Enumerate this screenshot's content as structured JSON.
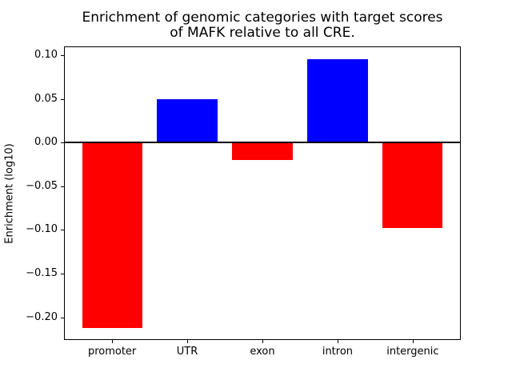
{
  "figure": {
    "background": "#ffffff",
    "title_line1": "Enrichment of genomic categories with target scores",
    "title_line2": "of MAFK relative to all CRE."
  },
  "chart_data": {
    "type": "bar",
    "title": "Enrichment of genomic categories with target scores\nof MAFK relative to all CRE.",
    "xlabel": "",
    "ylabel": "Enrichment (log10)",
    "categories": [
      "promoter",
      "UTR",
      "exon",
      "intron",
      "intergenic"
    ],
    "values": [
      -0.212,
      0.05,
      -0.02,
      0.095,
      -0.098
    ],
    "bar_colors": [
      "#ff0000",
      "#0000ff",
      "#ff0000",
      "#0000ff",
      "#ff0000"
    ],
    "positive_color": "#0000ff",
    "negative_color": "#ff0000",
    "ylim": [
      -0.226,
      0.11
    ],
    "yticks": [
      {
        "value": 0.1,
        "label": "0.10"
      },
      {
        "value": 0.05,
        "label": "0.05"
      },
      {
        "value": 0.0,
        "label": "0.00"
      },
      {
        "value": -0.05,
        "label": "−0.05"
      },
      {
        "value": -0.1,
        "label": "−0.10"
      },
      {
        "value": -0.15,
        "label": "−0.15"
      },
      {
        "value": -0.2,
        "label": "−0.20"
      }
    ],
    "zero_line": true,
    "grid": false,
    "legend": null,
    "axis_color": "#000000",
    "bar_rel_width": 0.8
  }
}
